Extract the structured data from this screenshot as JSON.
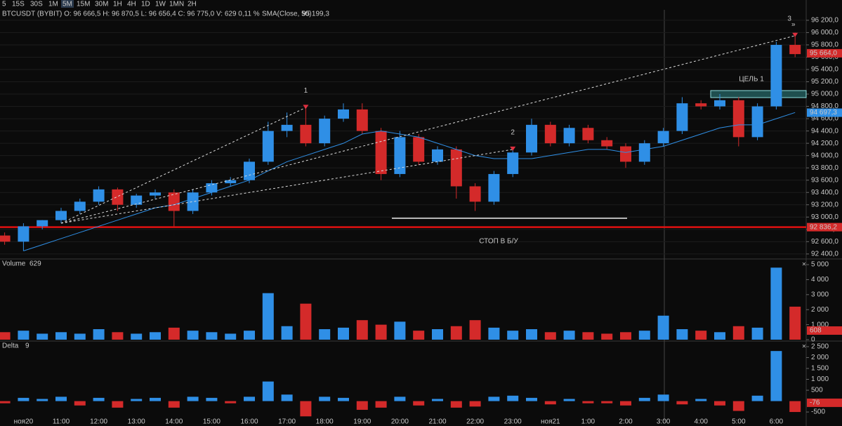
{
  "toolbar": {
    "intervals": [
      "5",
      "15S",
      "30S",
      "1M",
      "5M",
      "15M",
      "30M",
      "1H",
      "4H",
      "1D",
      "1W",
      "1MN",
      "2H"
    ],
    "active": 4
  },
  "chart_data": [
    {
      "type": "candlestick",
      "title": "BTCUSDT (BYBIT) O: 96 666,5 H: 96 870,5 L: 96 656,4 C: 96 775,0 V: 629 0,11 %",
      "categories": [
        null,
        "ноя20",
        null,
        "11:00",
        null,
        "12:00",
        null,
        "13:00",
        null,
        "14:00",
        null,
        "15:00",
        null,
        "16:00",
        null,
        "17:00",
        null,
        "18:00",
        null,
        "19:00",
        null,
        "20:00",
        null,
        "21:00",
        null,
        "22:00",
        null,
        "23:00",
        null,
        "ноя21",
        null,
        "1:00",
        null,
        "2:00",
        null,
        "3:00",
        null,
        "4:00",
        null,
        "5:00",
        null,
        "6:00",
        null
      ],
      "open": [
        92700,
        92600,
        92850,
        92950,
        93100,
        93250,
        93450,
        93200,
        93350,
        93400,
        93100,
        93400,
        93550,
        93600,
        93900,
        94400,
        94500,
        94200,
        94600,
        94750,
        94400,
        93700,
        94300,
        93900,
        94100,
        93500,
        93250,
        93700,
        94050,
        94500,
        94200,
        94450,
        94250,
        94150,
        93900,
        94200,
        94400,
        94850,
        94800,
        94900,
        94300,
        94800,
        95800
      ],
      "high": [
        92750,
        92900,
        92950,
        93150,
        93300,
        93500,
        93480,
        93380,
        93450,
        93450,
        93450,
        93600,
        93650,
        93950,
        94550,
        94700,
        94780,
        94650,
        94850,
        94850,
        94450,
        94400,
        94350,
        94150,
        94150,
        93550,
        93750,
        94100,
        94600,
        94550,
        94500,
        94500,
        94300,
        94200,
        94250,
        94450,
        94950,
        94900,
        95000,
        94950,
        94850,
        95850,
        96000
      ],
      "low": [
        92550,
        92450,
        92800,
        92900,
        93050,
        93200,
        93100,
        93150,
        93300,
        92850,
        93050,
        93350,
        93500,
        93550,
        93850,
        94300,
        94150,
        94150,
        94550,
        94350,
        93600,
        93650,
        93850,
        93850,
        93300,
        93100,
        93200,
        93650,
        94000,
        94150,
        94150,
        94200,
        94100,
        93800,
        93850,
        94150,
        94350,
        94750,
        94750,
        94150,
        94250,
        94750,
        95600
      ],
      "close": [
        92600,
        92850,
        92950,
        93100,
        93250,
        93450,
        93200,
        93350,
        93400,
        93100,
        93400,
        93550,
        93600,
        93900,
        94400,
        94500,
        94200,
        94600,
        94750,
        94400,
        93700,
        94300,
        93900,
        94100,
        93500,
        93250,
        93700,
        94050,
        94500,
        94200,
        94450,
        94250,
        94150,
        93900,
        94200,
        94400,
        94850,
        94800,
        94900,
        94300,
        94800,
        95800,
        95650
      ],
      "up_color": "#2f8fe6",
      "down_color": "#d42a2a",
      "ylim": [
        92330,
        96370
      ],
      "yticks": [
        {
          "value": 92400,
          "label": "92 400,0"
        },
        {
          "value": 92600,
          "label": "92 600,0"
        },
        {
          "value": 92800,
          "label": "92 800,0"
        },
        {
          "value": 93000,
          "label": "93 000,0"
        },
        {
          "value": 93200,
          "label": "93 200,0"
        },
        {
          "value": 93400,
          "label": "93 400,0"
        },
        {
          "value": 93600,
          "label": "93 600,0"
        },
        {
          "value": 93800,
          "label": "93 800,0"
        },
        {
          "value": 94000,
          "label": "94 000,0"
        },
        {
          "value": 94200,
          "label": "94 200,0"
        },
        {
          "value": 94400,
          "label": "94 400,0"
        },
        {
          "value": 94600,
          "label": "94 600,0"
        },
        {
          "value": 94800,
          "label": "94 800,0"
        },
        {
          "value": 95000,
          "label": "95 000,0"
        },
        {
          "value": 95200,
          "label": "95 200,0"
        },
        {
          "value": 95400,
          "label": "95 400,0"
        },
        {
          "value": 95600,
          "label": "95 600,0"
        },
        {
          "value": 95800,
          "label": "95 800,0"
        },
        {
          "value": 96000,
          "label": "96 000,0"
        },
        {
          "value": 96200,
          "label": "96 200,0"
        }
      ],
      "grid": true,
      "sma": {
        "name": "SMA(Close, 50)",
        "color": "#2f8fe6",
        "header_value": "95 199,3",
        "values": [
          null,
          92450,
          92550,
          92650,
          92750,
          92850,
          92950,
          93050,
          93150,
          93200,
          93300,
          93400,
          93500,
          93600,
          93750,
          93900,
          94000,
          94100,
          94200,
          94350,
          94400,
          94350,
          94300,
          94200,
          94100,
          94000,
          93950,
          93950,
          93950,
          94000,
          94050,
          94100,
          94100,
          94050,
          94100,
          94150,
          94250,
          94350,
          94450,
          94500,
          94500,
          94600,
          94700
        ],
        "last": {
          "value": 94697.3,
          "label": "94 697,3"
        }
      },
      "last_price": {
        "value": 95664,
        "label": "95 664,0"
      },
      "stop": {
        "value": 92836.2,
        "label": "92 836,2",
        "text": "СТОП В Б/У"
      },
      "target": {
        "value": 95000,
        "label": "ЦЕЛЬ 1"
      },
      "points": [
        {
          "label": "1",
          "value": 94780
        },
        {
          "label": "2",
          "value": 94100
        },
        {
          "label": "3",
          "value": 95950
        }
      ]
    },
    {
      "type": "bar",
      "title": "Volume",
      "title_value": "629",
      "values": [
        500,
        600,
        400,
        500,
        400,
        700,
        500,
        400,
        500,
        800,
        600,
        500,
        400,
        600,
        3100,
        900,
        2400,
        700,
        800,
        1300,
        1000,
        1200,
        600,
        700,
        900,
        1300,
        800,
        600,
        700,
        500,
        600,
        500,
        400,
        500,
        600,
        1600,
        700,
        600,
        500,
        900,
        800,
        4800,
        2200
      ],
      "ylim": [
        0,
        5330
      ],
      "yticks": [
        0,
        {
          "value": 1000,
          "label": "1 000"
        },
        {
          "value": 2000,
          "label": "2 000"
        },
        {
          "value": 3000,
          "label": "3 000"
        },
        {
          "value": 4000,
          "label": "4 000"
        },
        {
          "value": 5000,
          "label": "5 000"
        }
      ],
      "last": {
        "value": 608,
        "label": "608"
      }
    },
    {
      "type": "bar",
      "title": "Delta",
      "title_value": "9",
      "values": [
        -100,
        150,
        100,
        200,
        -200,
        150,
        -300,
        100,
        150,
        -300,
        200,
        150,
        -100,
        200,
        900,
        300,
        -700,
        200,
        150,
        -400,
        -300,
        200,
        -200,
        100,
        -300,
        -250,
        200,
        250,
        150,
        -150,
        100,
        -100,
        -100,
        -200,
        150,
        300,
        -150,
        100,
        -200,
        -450,
        250,
        2300,
        -500
      ],
      "ylim": [
        -917,
        2724
      ],
      "yticks": [
        -500,
        500,
        {
          "value": 1000,
          "label": "1 000"
        },
        {
          "value": 1500,
          "label": "1 500"
        },
        {
          "value": 2000,
          "label": "2 000"
        },
        {
          "value": 2500,
          "label": "2 500"
        }
      ],
      "last": {
        "value": -76,
        "label": "-76"
      }
    }
  ]
}
